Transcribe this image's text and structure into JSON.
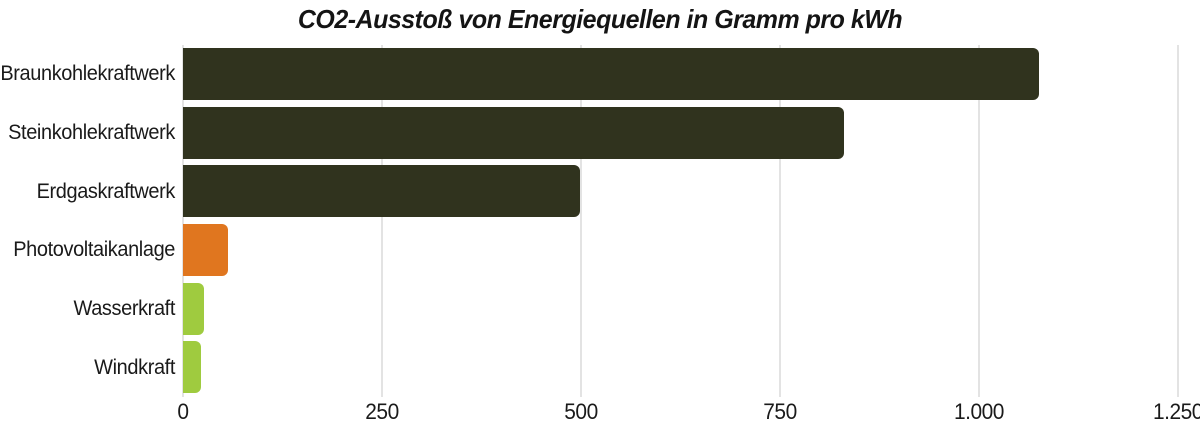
{
  "title": "CO2-Ausstoß von Energiequellen in Gramm pro kWh",
  "chart_data": {
    "type": "bar",
    "orientation": "horizontal",
    "title": "CO2-Ausstoß von Energiequellen in Gramm pro kWh",
    "categories": [
      "Braunkohlekraftwerk",
      "Steinkohlekraftwerk",
      "Erdgaskraftwerk",
      "Photovoltaikanlage",
      "Wasserkraft",
      "Windkraft"
    ],
    "values": [
      1075,
      830,
      499,
      56,
      27,
      23
    ],
    "bar_colors": [
      "#30331E",
      "#30331E",
      "#30331E",
      "#E0761F",
      "#9FCB3F",
      "#9FCB3F"
    ],
    "xlim": [
      0,
      1250
    ],
    "xticks": [
      0,
      250,
      500,
      750,
      1000,
      1250
    ],
    "tick_labels": [
      "0",
      "250",
      "500",
      "750",
      "1.000",
      "1.250"
    ],
    "grid": "vertical",
    "legend": "none",
    "colors": {
      "background": "#FFFFFF",
      "gridline": "#E3E3E3",
      "text": "#1A1A1A",
      "dark_bar": "#30331E",
      "orange_bar": "#E0761F",
      "green_bar": "#9FCB3F"
    }
  }
}
